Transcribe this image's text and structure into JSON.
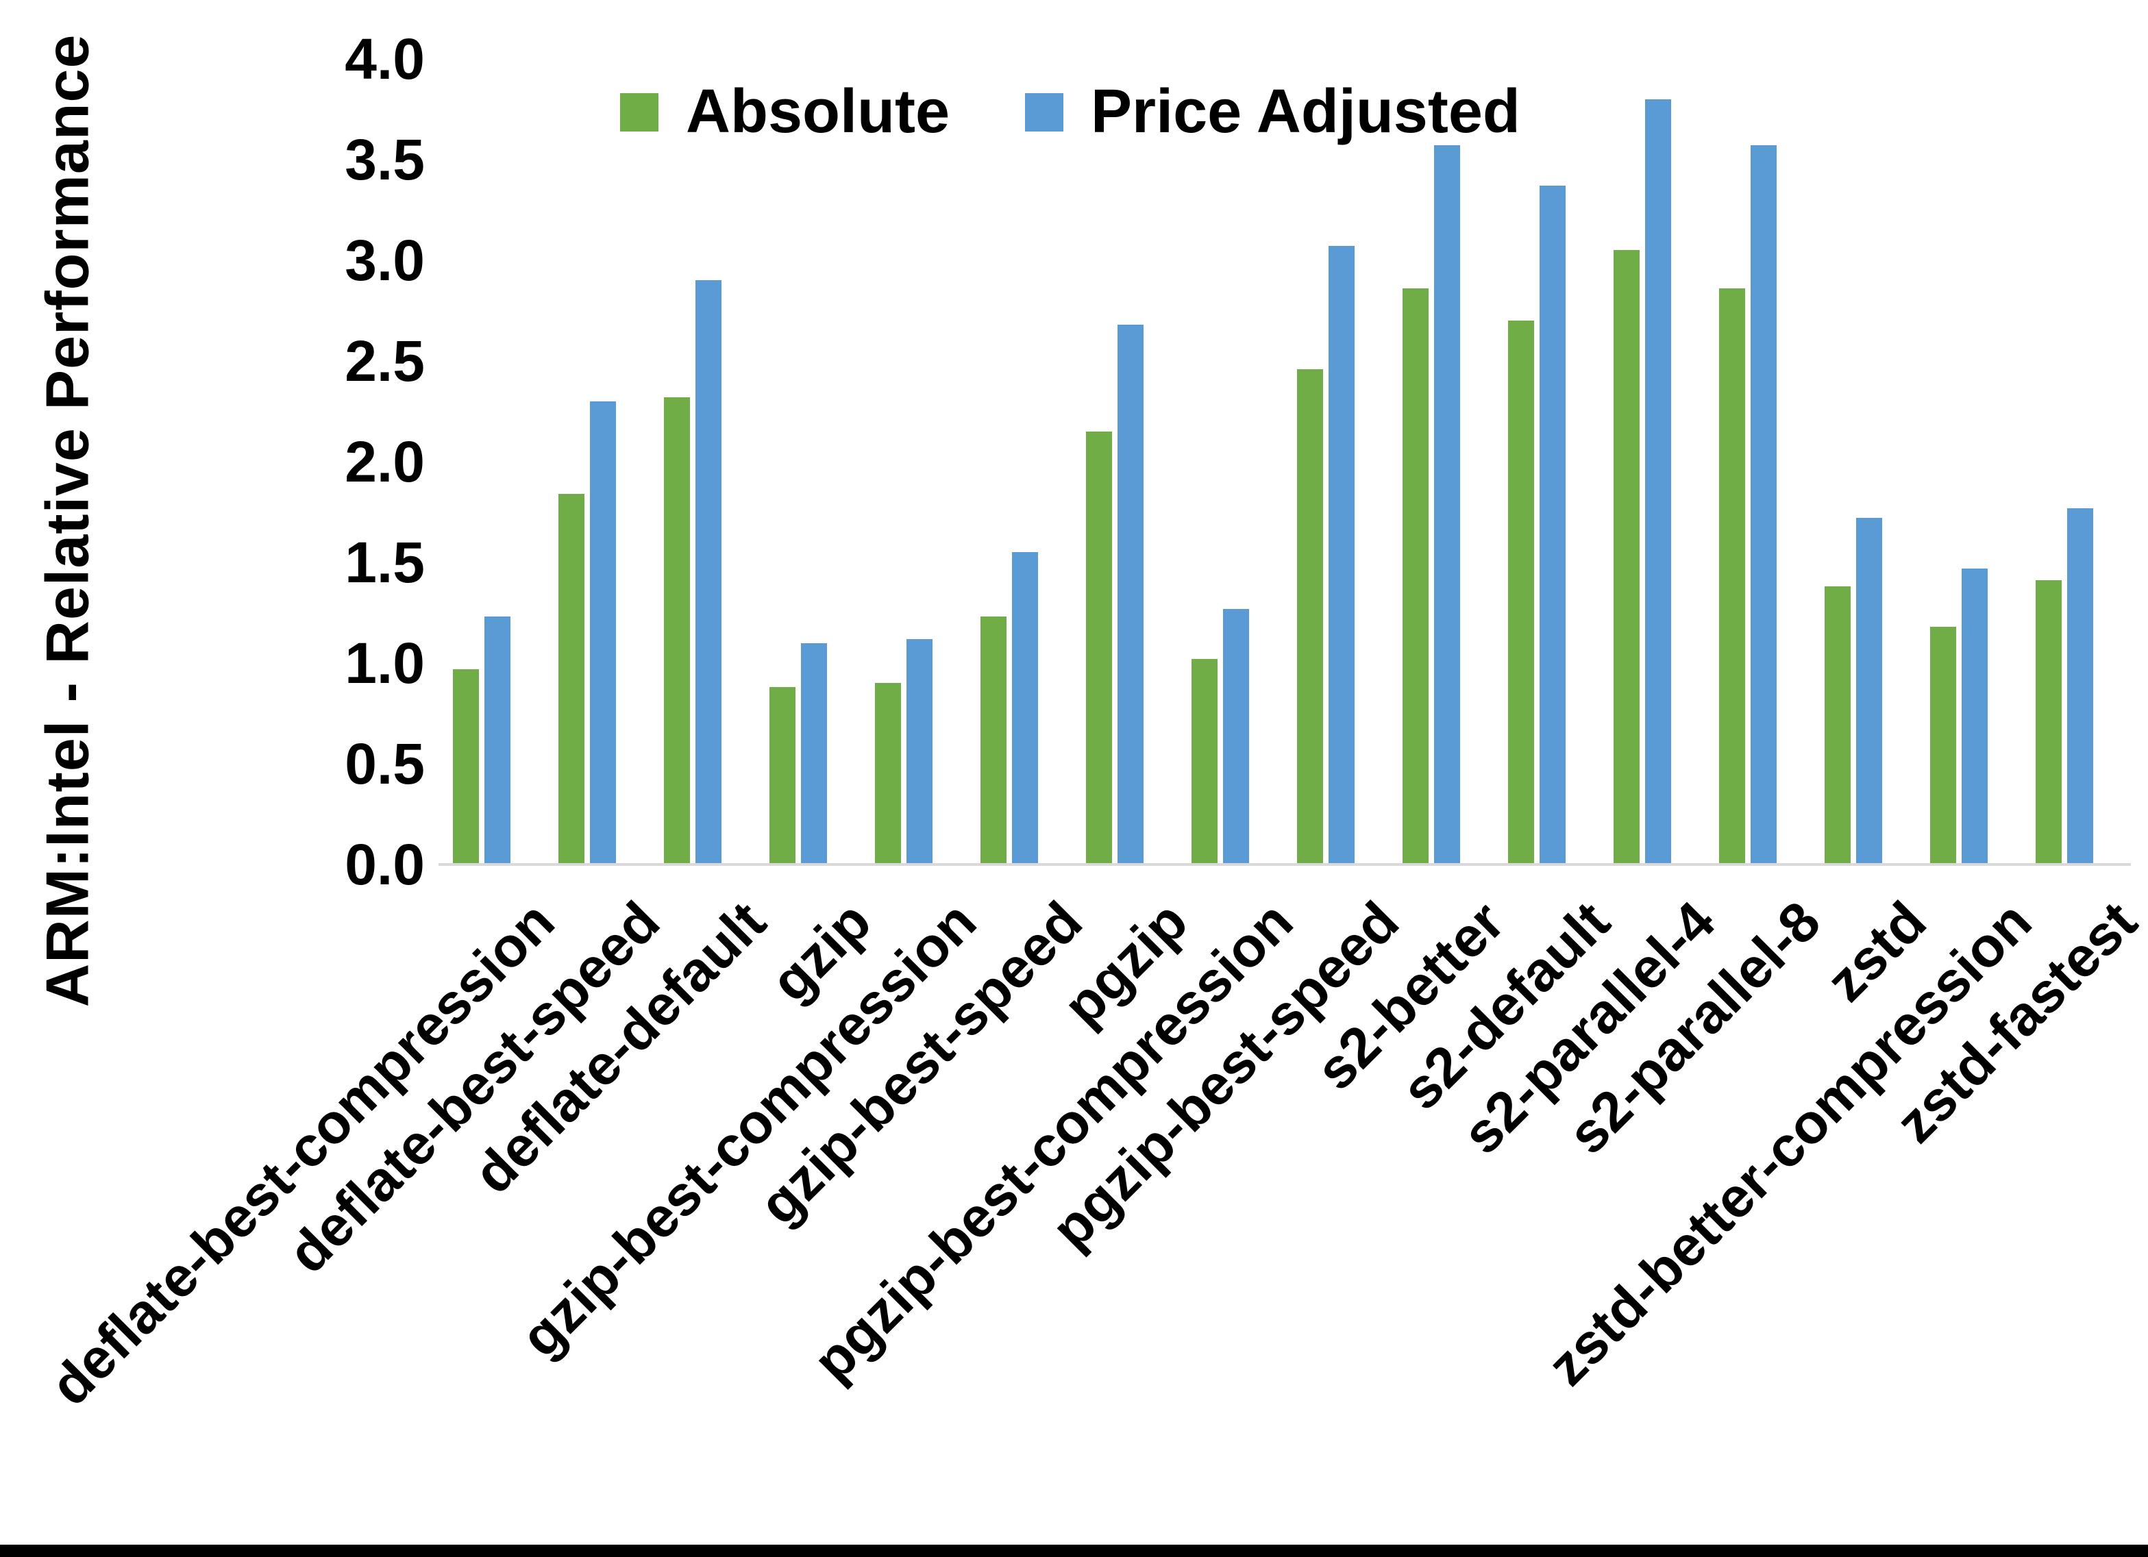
{
  "chart_data": {
    "type": "bar",
    "title": "",
    "ylabel": "ARM:Intel - Relative Performance",
    "xlabel": "",
    "ylim": [
      0,
      4
    ],
    "ytick_step": 0.5,
    "ytick_labels": [
      "0.0",
      "0.5",
      "1.0",
      "1.5",
      "2.0",
      "2.5",
      "3.0",
      "3.5",
      "4.0"
    ],
    "grid": false,
    "legend_position": "top-center",
    "categories": [
      "deflate-best-compression",
      "deflate-best-speed",
      "deflate-default",
      "gzip",
      "gzip-best-compression",
      "gzip-best-speed",
      "pgzip",
      "pgzip-best-compression",
      "pgzip-best-speed",
      "s2-better",
      "s2-default",
      "s2-parallel-4",
      "s2-parallel-8",
      "zstd",
      "zstd-better-compression",
      "zstd-fastest"
    ],
    "series": [
      {
        "name": "Absolute",
        "color": "#70AD47",
        "values": [
          0.97,
          1.84,
          2.32,
          0.88,
          0.9,
          1.23,
          2.15,
          1.02,
          2.46,
          2.86,
          2.7,
          3.05,
          2.86,
          1.38,
          1.18,
          1.41
        ]
      },
      {
        "name": "Price Adjusted",
        "color": "#5B9BD5",
        "values": [
          1.23,
          2.3,
          2.9,
          1.1,
          1.12,
          1.55,
          2.68,
          1.27,
          3.07,
          3.57,
          3.37,
          3.8,
          3.57,
          1.72,
          1.47,
          1.77
        ]
      }
    ]
  },
  "colors": {
    "axis_line": "#D9D9D9",
    "text": "#000000",
    "background": "#FFFFFF",
    "bottom_border": "#000000"
  }
}
